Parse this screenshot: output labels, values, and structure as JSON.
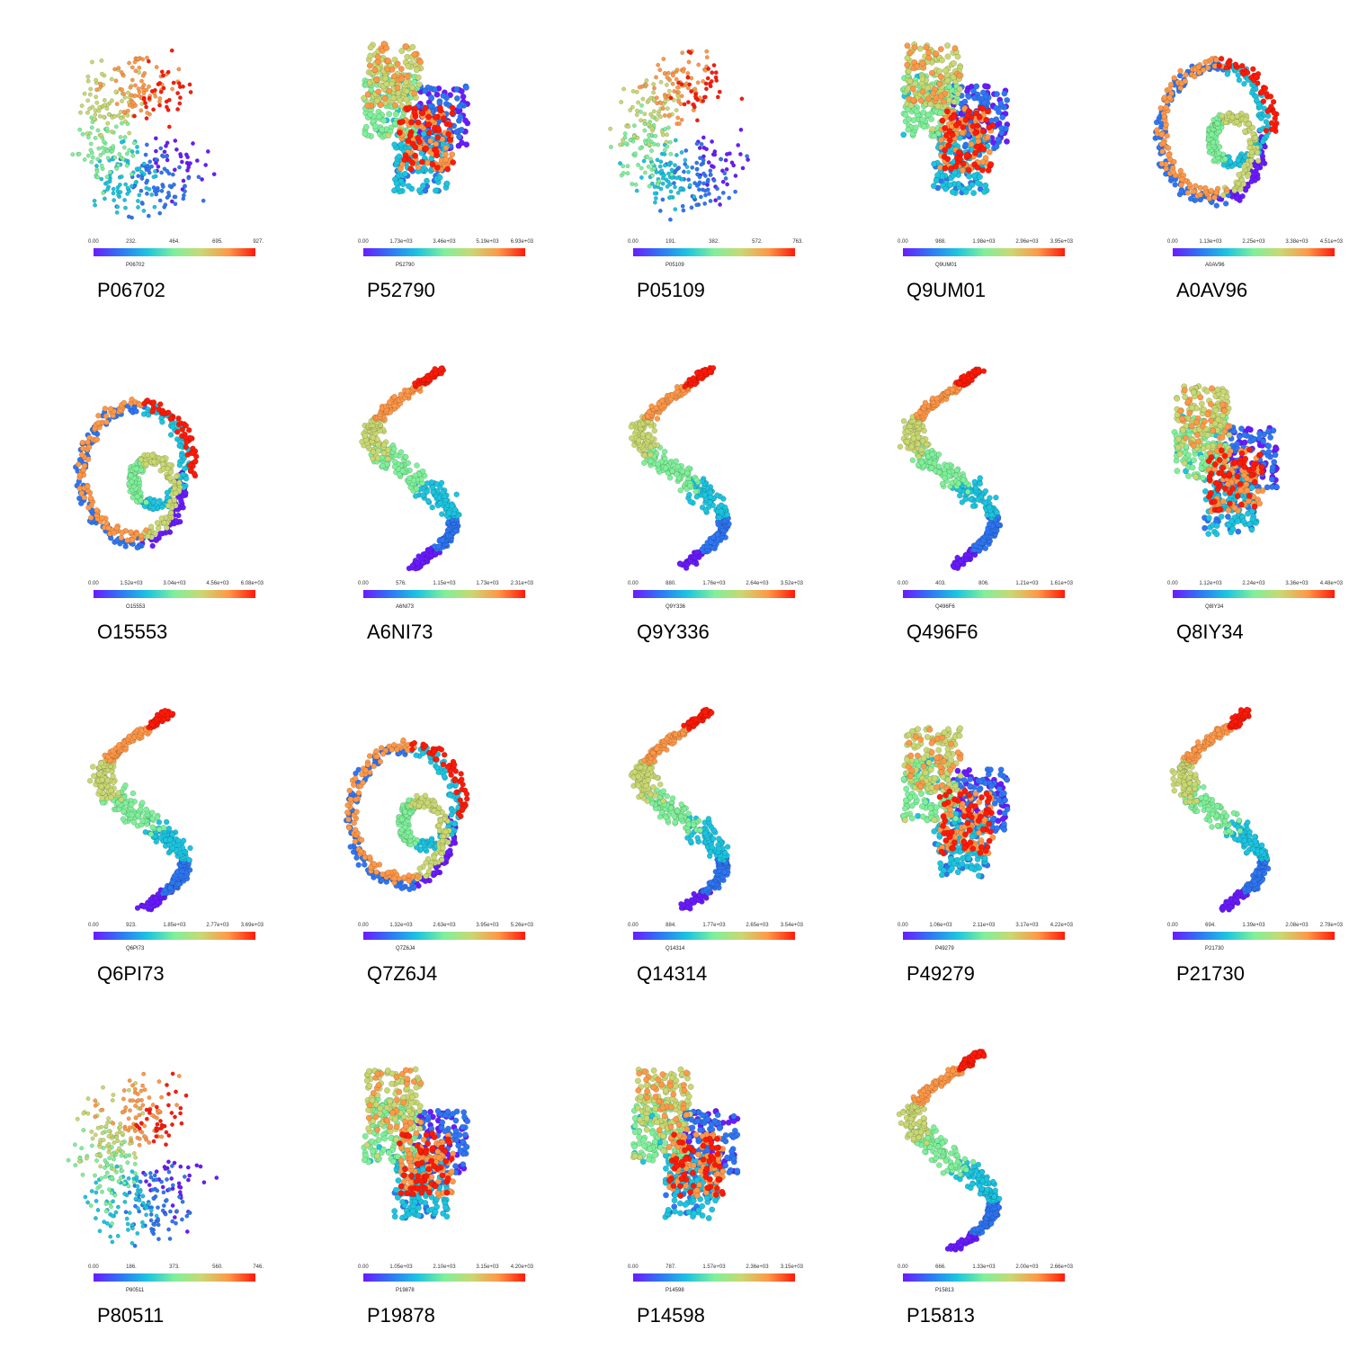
{
  "colormap": [
    "#6a1bff",
    "#2f76f4",
    "#1cc4e0",
    "#7ff09a",
    "#c9d872",
    "#ff9848",
    "#ff1a08"
  ],
  "panels": [
    {
      "id": "P06702",
      "ticks": [
        "0.00",
        "232.",
        "464.",
        "695.",
        "927."
      ],
      "shape": "scatter"
    },
    {
      "id": "P52790",
      "ticks": [
        "0.00",
        "1.73e+03",
        "3.46e+03",
        "5.19e+03",
        "6.93e+03"
      ],
      "shape": "compact"
    },
    {
      "id": "P05109",
      "ticks": [
        "0.00",
        "191.",
        "382.",
        "572.",
        "763."
      ],
      "shape": "scatter"
    },
    {
      "id": "Q9UM01",
      "ticks": [
        "0.00",
        "988.",
        "1.98e+03",
        "2.96e+03",
        "3.95e+03"
      ],
      "shape": "compact"
    },
    {
      "id": "A0AV96",
      "ticks": [
        "0.00",
        "1.13e+03",
        "2.25e+03",
        "3.38e+03",
        "4.51e+03"
      ],
      "shape": "loop"
    },
    {
      "id": "O15553",
      "ticks": [
        "0.00",
        "1.52e+03",
        "3.04e+03",
        "4.56e+03",
        "6.08e+03"
      ],
      "shape": "loop"
    },
    {
      "id": "A6NI73",
      "ticks": [
        "0.00",
        "576.",
        "1.15e+03",
        "1.73e+03",
        "2.31e+03"
      ],
      "shape": "chain"
    },
    {
      "id": "Q9Y336",
      "ticks": [
        "0.00",
        "880.",
        "1.76e+03",
        "2.64e+03",
        "3.52e+03"
      ],
      "shape": "chain"
    },
    {
      "id": "Q496F6",
      "ticks": [
        "0.00",
        "403.",
        "806.",
        "1.21e+03",
        "1.61e+03"
      ],
      "shape": "chain"
    },
    {
      "id": "Q8IY34",
      "ticks": [
        "0.00",
        "1.12e+03",
        "2.24e+03",
        "3.36e+03",
        "4.48e+03"
      ],
      "shape": "compact"
    },
    {
      "id": "Q6PI73",
      "ticks": [
        "0.00",
        "923.",
        "1.85e+03",
        "2.77e+03",
        "3.69e+03"
      ],
      "shape": "chain"
    },
    {
      "id": "Q7Z6J4",
      "ticks": [
        "0.00",
        "1.32e+03",
        "2.63e+03",
        "3.95e+03",
        "5.26e+03"
      ],
      "shape": "loop"
    },
    {
      "id": "Q14314",
      "ticks": [
        "0.00",
        "884.",
        "1.77e+03",
        "2.65e+03",
        "3.54e+03"
      ],
      "shape": "chain"
    },
    {
      "id": "P49279",
      "ticks": [
        "0.00",
        "1.06e+03",
        "2.11e+03",
        "3.17e+03",
        "4.22e+03"
      ],
      "shape": "compact"
    },
    {
      "id": "P21730",
      "ticks": [
        "0.00",
        "694.",
        "1.39e+03",
        "2.08e+03",
        "2.78e+03"
      ],
      "shape": "chain"
    },
    {
      "id": "P80511",
      "ticks": [
        "0.00",
        "186.",
        "373.",
        "560.",
        "746."
      ],
      "shape": "scatter"
    },
    {
      "id": "P19878",
      "ticks": [
        "0.00",
        "1.05e+03",
        "2.10e+03",
        "3.15e+03",
        "4.20e+03"
      ],
      "shape": "compact"
    },
    {
      "id": "P14598",
      "ticks": [
        "0.00",
        "787.",
        "1.57e+03",
        "2.36e+03",
        "3.15e+03"
      ],
      "shape": "compact"
    },
    {
      "id": "P15813",
      "ticks": [
        "0.00",
        "666.",
        "1.33e+03",
        "2.00e+03",
        "2.66e+03"
      ],
      "shape": "chain"
    }
  ]
}
